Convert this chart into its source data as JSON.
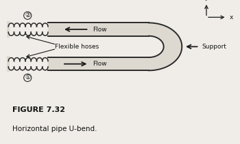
{
  "bg_color": "#f0ede8",
  "title": "FIGURE 7.32",
  "subtitle": "Horizontal pipe U-bend.",
  "title_fontsize": 8,
  "subtitle_fontsize": 7.5,
  "pipe_color": "#2a2a2a",
  "pipe_lw": 1.4,
  "pipe_inner_color": "#ddd9d0",
  "arrow_color": "#1a1a1a",
  "text_color": "#111111",
  "support_text": "Support",
  "flow_text": "Flow",
  "flexible_text": "Flexible hoses",
  "label1": "①",
  "label2": "②"
}
